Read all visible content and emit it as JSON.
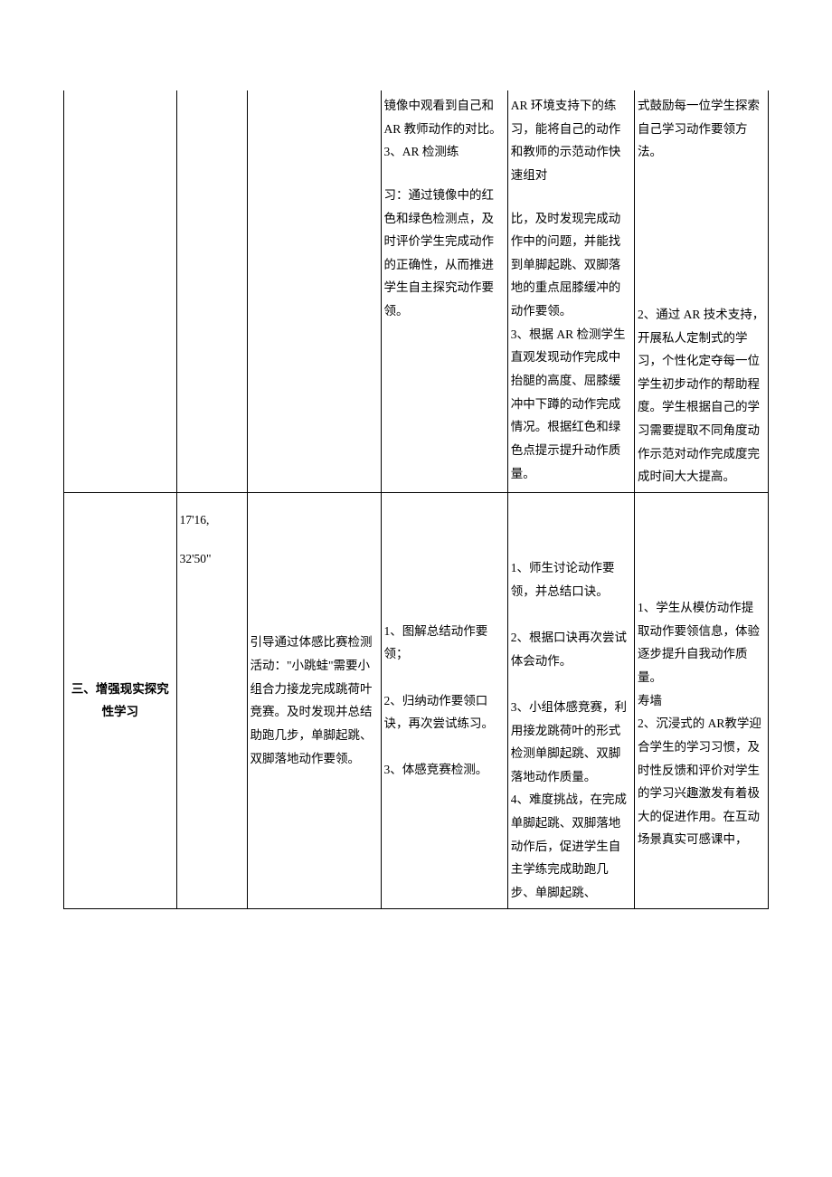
{
  "row1": {
    "col1": "",
    "col2": "",
    "col3": "",
    "col4_top": "镜像中观看到自己和 AR 教师动作的对比。\n3、AR 检测练",
    "col4_bottom": "习：通过镜像中的红色和绿色检测点，及时评价学生完成动作的正确性，从而推进学生自主探究动作要领。",
    "col5_top": "AR 环境支持下的练习，能将自己的动作和教师的示范动作快速组对",
    "col5_bottom": "比，及时发现完成动作中的问题，并能找到单脚起跳、双脚落地的重点屈膝缓冲的动作要领。\n3、根据 AR 检测学生直观发现动作完成中抬腿的高度、屈膝缓冲中下蹲的动作完成情况。根据红色和绿色点提示提升动作质量。",
    "col6_top": "式鼓励每一位学生探索自己学习动作要领方法。",
    "col6_bottom": "2、通过 AR 技术支持，开展私人定制式的学习，个性化定夺每一位学生初步动作的帮助程度。学生根据自己的学习需要提取不同角度动作示范对动作完成度完成时间大大提高。"
  },
  "row2": {
    "section_title": "三、增强现实探究性学习",
    "time1": "17'16,",
    "time2": "32'50\"",
    "col3": "引导通过体感比赛检测活动：\"小跳蛙\"需要小组合力接龙完成跳荷叶竞赛。及时发现并总结助跑几步，单脚起跳、双脚落地动作要领。",
    "col4": "1、图解总结动作要领；\n\n2、归纳动作要领口诀，再次尝试练习。\n\n3、体感竞赛检测。",
    "col5": "1、师生讨论动作要领，并总结口诀。\n\n2、根据口诀再次尝试体会动作。\n\n3、小组体感竞赛，利用接龙跳荷叶的形式检测单脚起跳、双脚落地动作质量。\n4、难度挑战，在完成单脚起跳、双脚落地动作后，促进学生自主学练完成助跑几\n步、单脚起跳、",
    "col6": "1、学生从模仿动作提取动作要领信息，体验逐步提升自我动作质量。\n寿墙\n2、沉浸式的 AR教学迎合学生的学习习惯，及时性反馈和评价对学生的学习兴趣激发有着极大的促进作用。在互动场景真实可感课中，"
  },
  "style": {
    "border_color": "#000000",
    "background_color": "#ffffff",
    "font_family": "SimSun",
    "font_size": 13.5,
    "line_height": 1.9
  }
}
